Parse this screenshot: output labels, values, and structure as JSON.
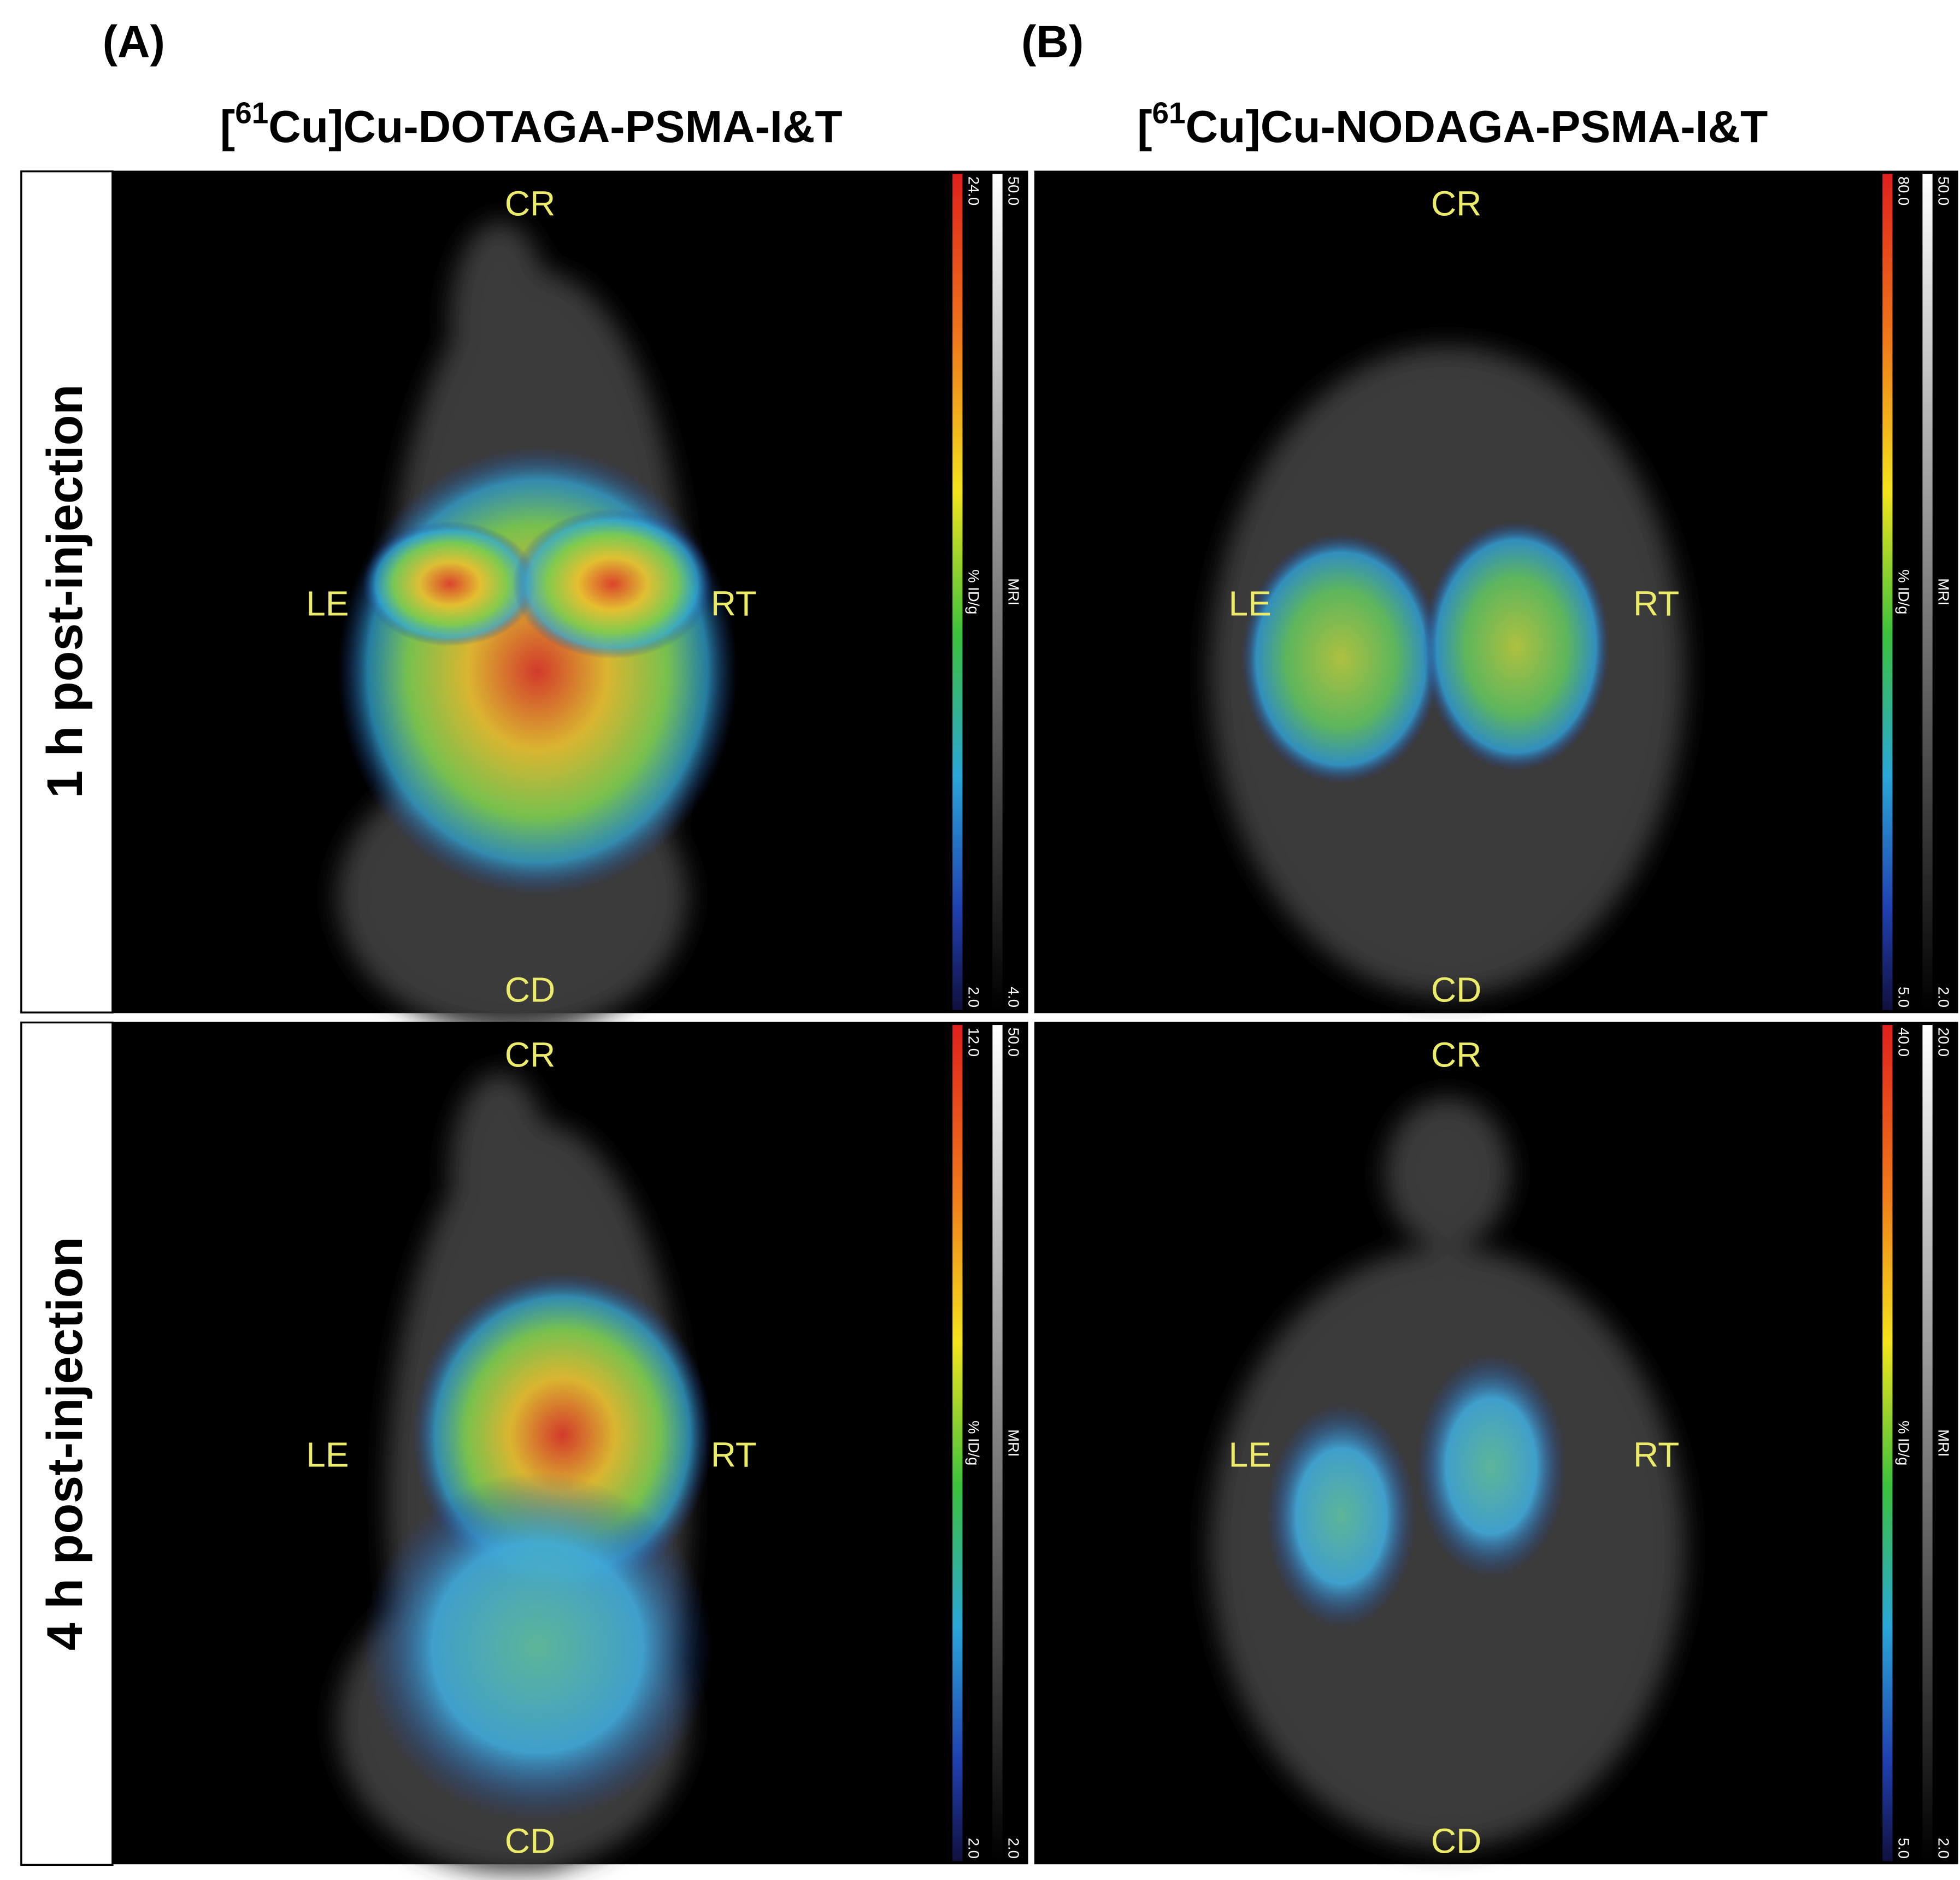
{
  "columns": [
    {
      "panel": "(A)",
      "title": {
        "open": "[",
        "isotope": "61",
        "rest": "Cu]Cu-DOTAGA-PSMA-I&T"
      }
    },
    {
      "panel": "(B)",
      "title": {
        "open": "[",
        "isotope": "61",
        "rest": "Cu]Cu-NODAGA-PSMA-I&T"
      }
    }
  ],
  "rows": [
    "1 h post-injection",
    "4 h post-injection"
  ],
  "panels": [
    {
      "cranial": "CR",
      "left": "LE",
      "right": "RT",
      "caudal": "CD",
      "pet_scale": {
        "max": "24.0",
        "min": "2.0",
        "unit": "% ID/g"
      },
      "mri_scale": {
        "max": "50.0",
        "min": "4.0",
        "unit": "MRI"
      }
    },
    {
      "cranial": "CR",
      "left": "LE",
      "right": "RT",
      "caudal": "CD",
      "pet_scale": {
        "max": "80.0",
        "min": "5.0",
        "unit": "% ID/g"
      },
      "mri_scale": {
        "max": "50.0",
        "min": "2.0",
        "unit": "MRI"
      }
    },
    {
      "cranial": "CR",
      "left": "LE",
      "right": "RT",
      "caudal": "CD",
      "pet_scale": {
        "max": "12.0",
        "min": "2.0",
        "unit": "% ID/g"
      },
      "mri_scale": {
        "max": "50.0",
        "min": "2.0",
        "unit": "MRI"
      }
    },
    {
      "cranial": "CR",
      "left": "LE",
      "right": "RT",
      "caudal": "CD",
      "pet_scale": {
        "max": "40.0",
        "min": "5.0",
        "unit": "% ID/g"
      },
      "mri_scale": {
        "max": "20.0",
        "min": "2.0",
        "unit": "MRI"
      }
    }
  ]
}
